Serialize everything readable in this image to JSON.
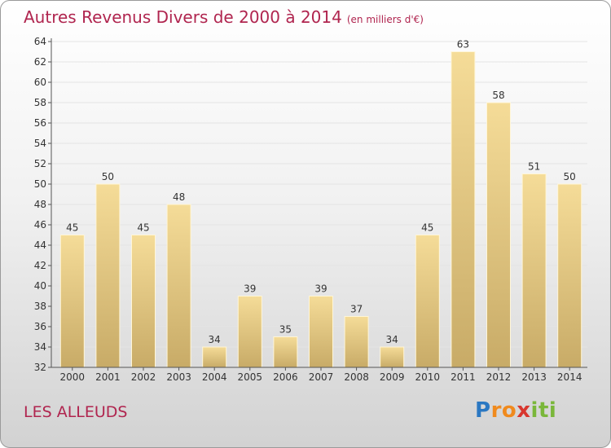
{
  "title": "Autres Revenus Divers de 2000 à 2014",
  "unit_note": "(en milliers d'€)",
  "commune": "LES ALLEUDS",
  "logo": {
    "letters": [
      "P",
      "r",
      "o",
      "x",
      "i",
      "t",
      "i"
    ],
    "colors": [
      "#2b78c2",
      "#f08a1d",
      "#f08a1d",
      "#d8372f",
      "#7ab73a",
      "#7ab73a",
      "#7ab73a"
    ]
  },
  "chart_data": {
    "type": "bar",
    "categories": [
      "2000",
      "2001",
      "2002",
      "2003",
      "2004",
      "2005",
      "2006",
      "2007",
      "2008",
      "2009",
      "2010",
      "2011",
      "2012",
      "2013",
      "2014"
    ],
    "values": [
      45,
      50,
      45,
      48,
      34,
      39,
      35,
      39,
      37,
      34,
      45,
      63,
      58,
      51,
      50
    ],
    "ylim": [
      32,
      64
    ],
    "yticks": [
      32,
      34,
      36,
      38,
      40,
      42,
      44,
      46,
      48,
      50,
      52,
      54,
      56,
      58,
      60,
      62,
      64
    ],
    "bar_color": "#e2c67e"
  }
}
